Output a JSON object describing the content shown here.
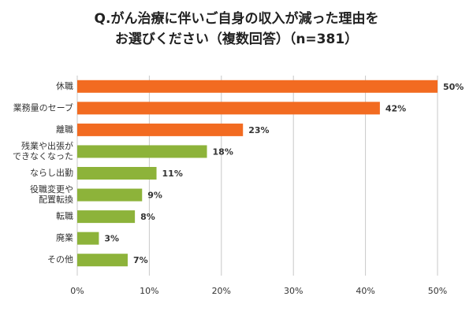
{
  "chart_data": {
    "type": "bar",
    "orientation": "horizontal",
    "title": [
      "Q.がん治療に伴いご自身の収入が減った理由を",
      "お選びください（複数回答）（n=381）"
    ],
    "categories": [
      "休職",
      "業務量のセーブ",
      "離職",
      "残業や出張が\nできなくなった",
      "ならし出勤",
      "役職変更や\n配置転換",
      "転職",
      "廃業",
      "その他"
    ],
    "values": [
      50,
      42,
      23,
      18,
      11,
      9,
      8,
      3,
      7
    ],
    "value_labels": [
      "50%",
      "42%",
      "23%",
      "18%",
      "11%",
      "9%",
      "8%",
      "3%",
      "7%"
    ],
    "colors": [
      "#f26b21",
      "#f26b21",
      "#f26b21",
      "#8db33a",
      "#8db33a",
      "#8db33a",
      "#8db33a",
      "#8db33a",
      "#8db33a"
    ],
    "label_colors": [
      "#e0531a",
      "#e0531a",
      "#e0531a",
      "#333333",
      "#333333",
      "#333333",
      "#333333",
      "#333333",
      "#333333"
    ],
    "xlim": [
      0,
      50
    ],
    "xticks": [
      {
        "value": 0,
        "label": "0%"
      },
      {
        "value": 10,
        "label": "10%"
      },
      {
        "value": 20,
        "label": "20%"
      },
      {
        "value": 30,
        "label": "30%"
      },
      {
        "value": 40,
        "label": "40%"
      },
      {
        "value": 50,
        "label": "50%"
      }
    ],
    "grid": true
  }
}
